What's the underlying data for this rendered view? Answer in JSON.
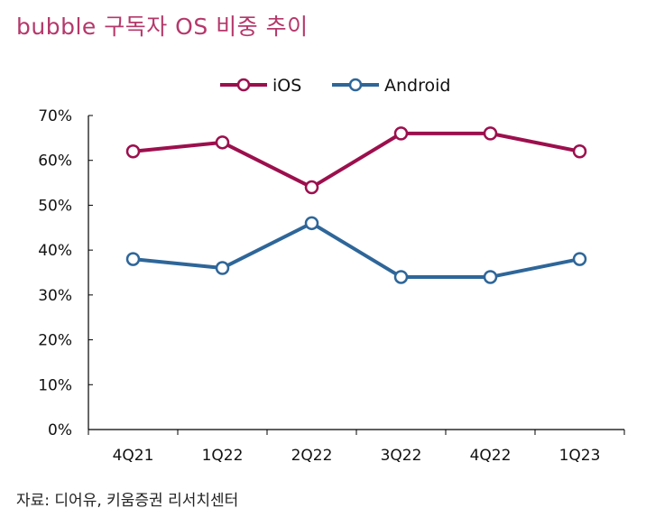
{
  "title": "bubble 구독자 OS 비중 추이",
  "source": "자료: 디어유, 키움증권 리서치센터",
  "chart_data": {
    "type": "line",
    "title": "bubble 구독자 OS 비중 추이",
    "categories": [
      "4Q21",
      "1Q22",
      "2Q22",
      "3Q22",
      "4Q22",
      "1Q23"
    ],
    "y_ticks": [
      "0%",
      "10%",
      "20%",
      "30%",
      "40%",
      "50%",
      "60%",
      "70%"
    ],
    "ylim": [
      0,
      70
    ],
    "grid": false,
    "legend_position": "top-center",
    "series": [
      {
        "name": "iOS",
        "color": "#9c0f4d",
        "values": [
          62,
          64,
          54,
          66,
          66,
          62
        ]
      },
      {
        "name": "Android",
        "color": "#2e6699",
        "values": [
          38,
          36,
          46,
          34,
          34,
          38
        ]
      }
    ]
  }
}
